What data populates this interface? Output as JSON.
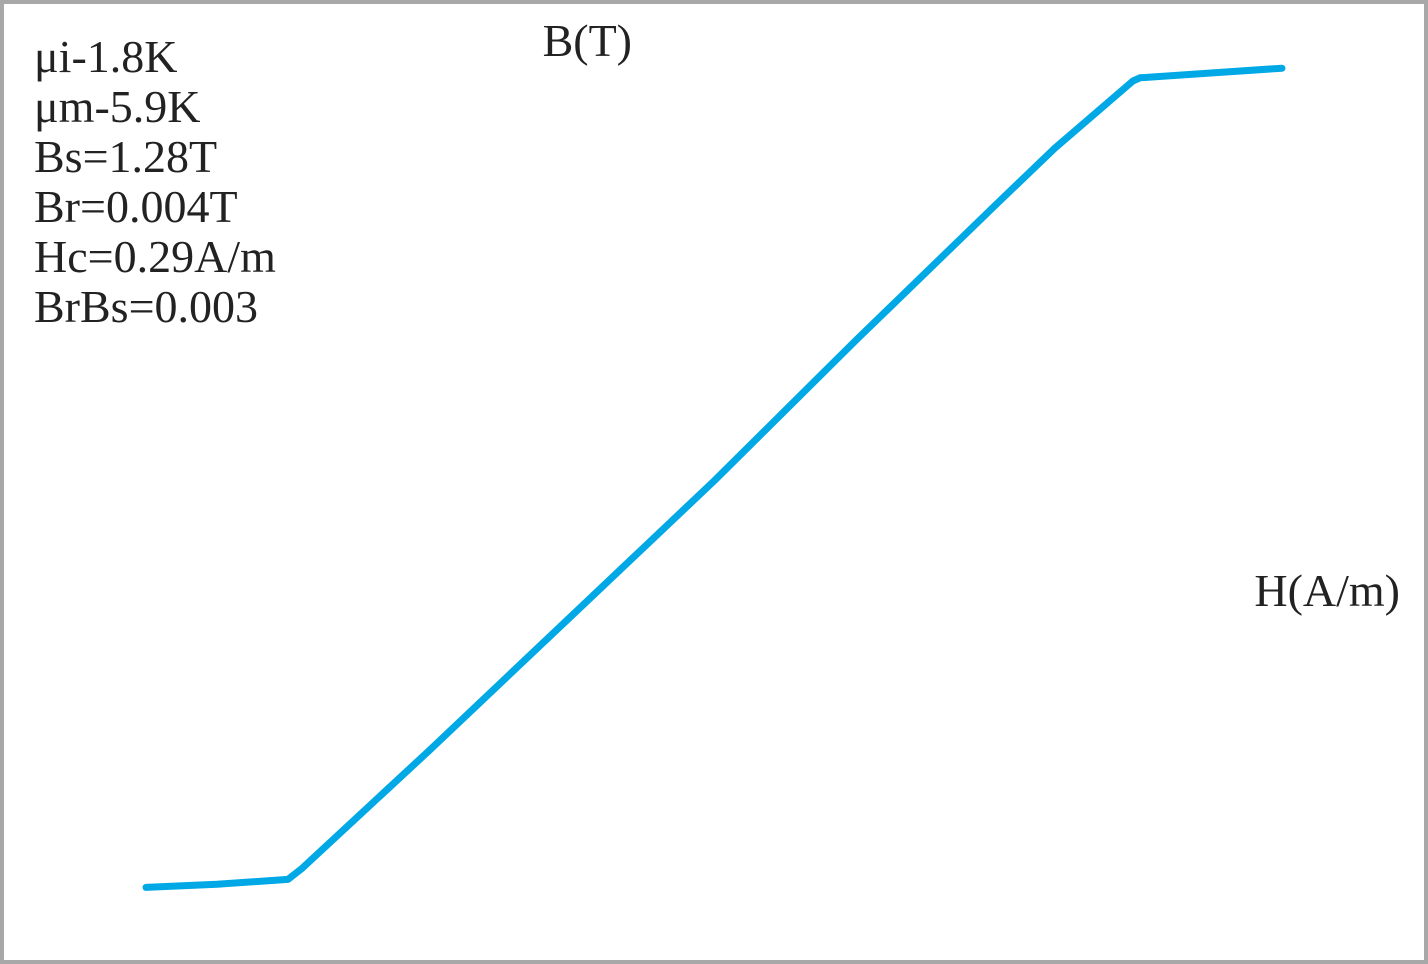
{
  "chart_data": {
    "type": "line",
    "xlabel": "H(A/m)",
    "ylabel": "B(T)",
    "annotations": [
      "μi-1.8K",
      "μm-5.9K",
      "Bs=1.28T",
      "Br=0.004T",
      "Hc=0.29A/m",
      "BrBs=0.003"
    ],
    "xlim": [
      -1000,
      1000
    ],
    "ylim": [
      -1.5,
      1.5
    ],
    "xticks": [
      {
        "value": -1000,
        "label": null
      },
      {
        "value": -900,
        "label": null
      },
      -800,
      {
        "value": -700,
        "label": null
      },
      -600,
      {
        "value": -500,
        "label": null
      },
      -400,
      {
        "value": -300,
        "label": null
      },
      -200,
      {
        "value": -100,
        "label": null
      },
      0,
      {
        "value": 100,
        "label": null
      },
      200,
      {
        "value": 300,
        "label": null
      },
      400,
      {
        "value": 500,
        "label": null
      },
      600,
      {
        "value": 700,
        "label": null
      },
      800,
      {
        "value": 900,
        "label": null
      },
      1000
    ],
    "yticks": [
      {
        "value": -1.5,
        "label": "-1.5"
      },
      {
        "value": -1.25,
        "label": null
      },
      {
        "value": -1.0,
        "label": "-1.0"
      },
      {
        "value": -0.75,
        "label": null
      },
      -0.5,
      {
        "value": -0.25,
        "label": null
      },
      {
        "value": 0,
        "label": "0.0"
      },
      {
        "value": 0.25,
        "label": null
      },
      0.5,
      {
        "value": 0.75,
        "label": null
      },
      {
        "value": 1.0,
        "label": "1.0"
      },
      {
        "value": 1.25,
        "label": null
      },
      1.5
    ],
    "grid": true,
    "x": [
      -800,
      -700,
      -600,
      -580,
      -400,
      -200,
      0,
      200,
      400,
      480,
      590,
      600,
      700,
      800
    ],
    "series": [
      {
        "color": "#00a9e6",
        "values": [
          -1.27,
          -1.26,
          -1.245,
          -1.21,
          -0.84,
          -0.42,
          0,
          0.44,
          0.87,
          1.04,
          1.25,
          1.26,
          1.275,
          1.29
        ]
      }
    ]
  }
}
